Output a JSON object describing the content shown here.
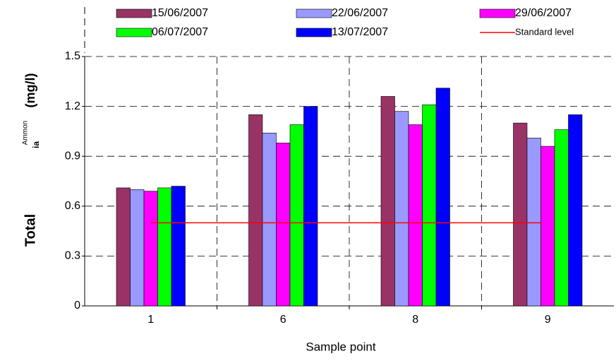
{
  "chart_data": {
    "type": "bar",
    "categories": [
      "1",
      "6",
      "8",
      "9"
    ],
    "series": [
      {
        "name": "15/06/2007",
        "color": "#993366",
        "values": [
          0.71,
          1.15,
          1.26,
          1.1
        ]
      },
      {
        "name": "22/06/2007",
        "color": "#9999ff",
        "values": [
          0.7,
          1.04,
          1.17,
          1.01
        ]
      },
      {
        "name": "29/06/2007",
        "color": "#ff00ff",
        "values": [
          0.69,
          0.98,
          1.09,
          0.96
        ]
      },
      {
        "name": "06/07/2007",
        "color": "#00ff00",
        "values": [
          0.71,
          1.09,
          1.21,
          1.06
        ]
      },
      {
        "name": "13/07/2007",
        "color": "#0000ff",
        "values": [
          0.72,
          1.2,
          1.31,
          1.15
        ]
      }
    ],
    "standard": {
      "name": "Standard level",
      "color": "#ff0000",
      "value": 0.5
    },
    "x_label": "Sample point",
    "y_label_parts": [
      "Total",
      "Ammon",
      "ia",
      "(mg/l)"
    ],
    "ylim": [
      0,
      1.5
    ],
    "yticks": [
      0,
      0.3,
      0.6,
      0.9,
      1.2,
      1.5
    ],
    "grid": true
  }
}
